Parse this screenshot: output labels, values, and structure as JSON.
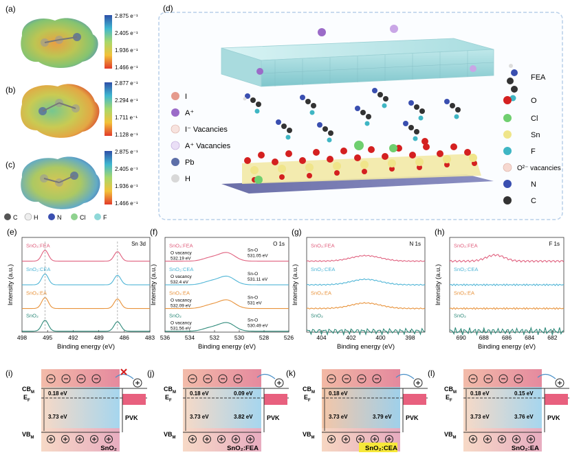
{
  "panels": {
    "a": "(a)",
    "b": "(b)",
    "c": "(c)",
    "d": "(d)",
    "e": "(e)",
    "f": "(f)",
    "g": "(g)",
    "h": "(h)",
    "i": "(i)",
    "j": "(j)",
    "k": "(k)",
    "l": "(l)"
  },
  "esp": [
    {
      "ticks": [
        "2.875 e⁻¹",
        "2.405 e⁻¹",
        "1.936 e⁻¹",
        "1.466 e⁻¹"
      ]
    },
    {
      "ticks": [
        "2.877 e⁻¹",
        "2.294 e⁻¹",
        "1.711 e⁻¹",
        "1.128 e⁻¹"
      ]
    },
    {
      "ticks": [
        "2.875 e⁻¹",
        "2.405 e⁻¹",
        "1.936 e⁻¹",
        "1.466 e⁻¹"
      ]
    }
  ],
  "atom_legend": [
    {
      "label": "C",
      "color": "#555555"
    },
    {
      "label": "H",
      "color": "#eeeeee"
    },
    {
      "label": "N",
      "color": "#3a4fb0"
    },
    {
      "label": "Cl",
      "color": "#8fd28f"
    },
    {
      "label": "F",
      "color": "#8fd8d8"
    }
  ],
  "schematic": {
    "left_legend": [
      {
        "label": "I",
        "color": "#e59a8c"
      },
      {
        "label": "A⁺",
        "color": "#9b6bc8"
      },
      {
        "label": "I⁻ Vacancies",
        "color": "#f7e3df"
      },
      {
        "label": "A⁺ Vacancies",
        "color": "#eadff6"
      },
      {
        "label": "Pb",
        "color": "#5d6fa8"
      },
      {
        "label": "H",
        "color": "#d8d8d8"
      }
    ],
    "right_legend": [
      {
        "label": "O",
        "color": "#d42020"
      },
      {
        "label": "Cl",
        "color": "#6fcf6f"
      },
      {
        "label": "Sn",
        "color": "#efe58a"
      },
      {
        "label": "F",
        "color": "#3fb6c4"
      },
      {
        "label": "O²⁻ vacancies",
        "color": "#f6d8d0"
      },
      {
        "label": "N",
        "color": "#3a4fb0"
      },
      {
        "label": "C",
        "color": "#333333"
      }
    ],
    "fea_label": "FEA"
  },
  "xps_common": {
    "ylabel": "Intensity (a.u.)",
    "xlabel": "Binding energy (eV)"
  },
  "xps": [
    {
      "title": "Sn 3d",
      "xlim": [
        498,
        483
      ],
      "xticks": [
        "498",
        "495",
        "492",
        "489",
        "486",
        "483"
      ],
      "series": [
        "SnO₂:FEA",
        "SnO₂:CEA",
        "SnO₂:EA",
        "SnO₂"
      ],
      "colors": [
        "#e0607e",
        "#4fb5d6",
        "#e8923a",
        "#2e8a7a"
      ],
      "peaks": [
        495.3,
        486.8
      ]
    },
    {
      "title": "O 1s",
      "xlim": [
        536,
        526
      ],
      "xticks": [
        "536",
        "534",
        "532",
        "530",
        "528",
        "526"
      ],
      "series": [
        "SnO₂:FEA",
        "SnO₂:CEA",
        "SnO₂:EA",
        "SnO₂"
      ],
      "colors": [
        "#e0607e",
        "#4fb5d6",
        "#e8923a",
        "#2e8a7a"
      ],
      "vacancy": [
        "O vacancy\n532.19 eV",
        "O vacancy\n532.4 eV",
        "O vacancy\n532.09 eV",
        "O vacancy\n531.56 eV"
      ],
      "sno": [
        "Sn-O\n531.05 eV",
        "Sn-O\n531.11 eV",
        "Sn-O\n531 eV",
        "Sn-O\n530.49 eV"
      ]
    },
    {
      "title": "N 1s",
      "xlim": [
        405,
        397
      ],
      "xticks": [
        "404",
        "402",
        "400",
        "398"
      ],
      "series": [
        "SnO₂:FEA",
        "SnO₂:CEA",
        "SnO₂:EA",
        "SnO₂"
      ],
      "colors": [
        "#e0607e",
        "#4fb5d6",
        "#e8923a",
        "#2e8a7a"
      ]
    },
    {
      "title": "F 1s",
      "xlim": [
        691,
        681
      ],
      "xticks": [
        "690",
        "688",
        "686",
        "684",
        "682"
      ],
      "series": [
        "SnO₂:FEA",
        "SnO₂:CEA",
        "SnO₂:EA",
        "SnO₂"
      ],
      "colors": [
        "#e0607e",
        "#4fb5d6",
        "#e8923a",
        "#2e8a7a"
      ]
    }
  ],
  "band": [
    {
      "top": "0.18 eV",
      "right_top": "",
      "gap": "3.73 eV",
      "right_gap": "",
      "sample": "SnO₂",
      "highlight": false,
      "blocked": true
    },
    {
      "top": "0.18 eV",
      "right_top": "0.09 eV",
      "gap": "3.73 eV",
      "right_gap": "3.82 eV",
      "sample": "SnO₂:FEA",
      "highlight": false,
      "blocked": false
    },
    {
      "top": "0.18 eV",
      "right_top": "",
      "gap": "3.73 eV",
      "right_gap": "3.79 eV",
      "sample": "SnO₂:CEA",
      "highlight": true,
      "blocked": false
    },
    {
      "top": "0.18 eV",
      "right_top": "0.15 eV",
      "gap": "3.73 eV",
      "right_gap": "3.76 eV",
      "sample": "SnO₂:EA",
      "highlight": false,
      "blocked": false
    }
  ],
  "band_labels": {
    "cb": "CB",
    "ef": "E",
    "vb": "VB",
    "cb_sub": "M",
    "ef_sub": "F",
    "vb_sub": "M",
    "pvk": "PVK"
  }
}
